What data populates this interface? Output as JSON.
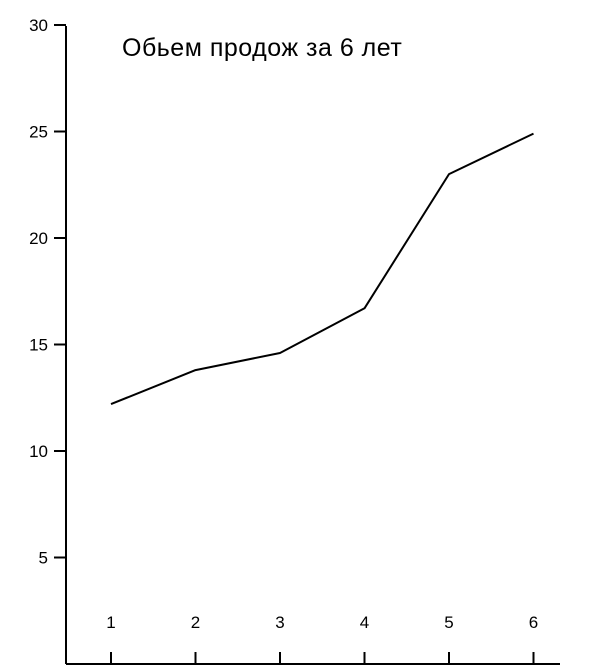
{
  "chart_data": {
    "type": "line",
    "title": "Обьем продож за 6 лет",
    "xlabel": "",
    "ylabel": "",
    "x": [
      1,
      2,
      3,
      4,
      5,
      6
    ],
    "y_ticks": [
      5,
      10,
      15,
      20,
      25,
      30
    ],
    "ylim": [
      0,
      30
    ],
    "xlim": [
      0.5,
      6
    ],
    "series": [
      {
        "values": [
          12.2,
          13.8,
          14.6,
          16.7,
          23.0,
          24.9
        ]
      }
    ],
    "line_color": "#000000",
    "grid": false
  }
}
